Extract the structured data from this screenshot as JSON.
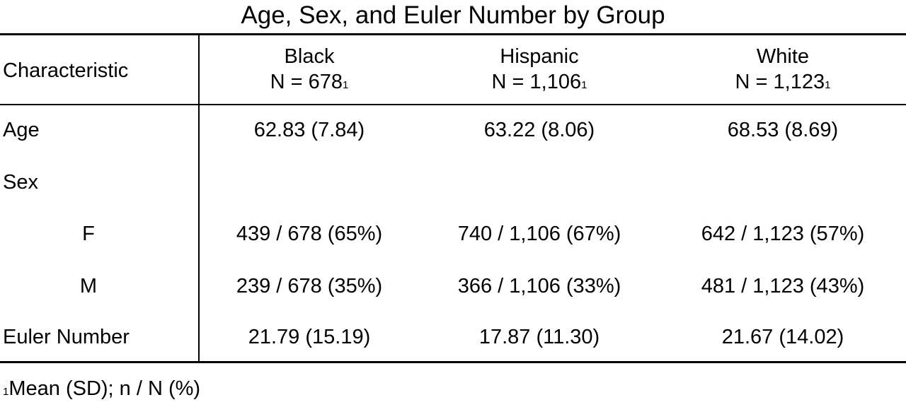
{
  "title": "Age, Sex, and Euler Number by Group",
  "header": {
    "characteristic": "Characteristic",
    "columns": [
      {
        "name": "Black",
        "n": "N = 678",
        "mark": "1"
      },
      {
        "name": "Hispanic",
        "n": "N = 1,106",
        "mark": "1"
      },
      {
        "name": "White",
        "n": "N = 1,123",
        "mark": "1"
      }
    ]
  },
  "rows": [
    {
      "label": "Age",
      "values": [
        "62.83 (7.84)",
        "63.22 (8.06)",
        "68.53 (8.69)"
      ]
    },
    {
      "label": "Sex",
      "values": [
        "",
        "",
        ""
      ]
    },
    {
      "label": "F",
      "values": [
        "439 / 678 (65%)",
        "740 / 1,106 (67%)",
        "642 / 1,123 (57%)"
      ]
    },
    {
      "label": "M",
      "values": [
        "239 / 678 (35%)",
        "366 / 1,106 (33%)",
        "481 / 1,123 (43%)"
      ]
    },
    {
      "label": "Euler Number",
      "values": [
        "21.79 (15.19)",
        "17.87 (11.30)",
        "21.67 (14.02)"
      ]
    }
  ],
  "footnote": {
    "mark": "1",
    "text": "Mean (SD); n / N (%)"
  }
}
